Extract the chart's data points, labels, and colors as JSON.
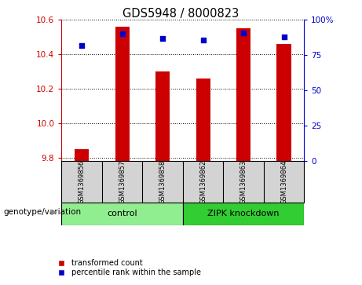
{
  "title": "GDS5948 / 8000823",
  "samples": [
    "GSM1369856",
    "GSM1369857",
    "GSM1369858",
    "GSM1369862",
    "GSM1369863",
    "GSM1369864"
  ],
  "transformed_count": [
    9.85,
    10.56,
    10.3,
    10.26,
    10.55,
    10.46
  ],
  "percentile_rank": [
    82,
    90,
    87,
    86,
    91,
    88
  ],
  "ylim_left": [
    9.78,
    10.6
  ],
  "ylim_right": [
    0,
    100
  ],
  "yticks_left": [
    9.8,
    10.0,
    10.2,
    10.4,
    10.6
  ],
  "yticks_right": [
    0,
    25,
    50,
    75,
    100
  ],
  "groups": [
    {
      "label": "control",
      "indices": [
        0,
        1,
        2
      ],
      "color": "#90ee90"
    },
    {
      "label": "ZIPK knockdown",
      "indices": [
        3,
        4,
        5
      ],
      "color": "#32cd32"
    }
  ],
  "bar_color": "#cc0000",
  "scatter_color": "#0000cc",
  "bar_bottom": 9.78,
  "bar_width": 0.35,
  "bg_color": "#d3d3d3",
  "plot_bg": "#ffffff",
  "label_color_left": "#cc0000",
  "label_color_right": "#0000cc",
  "legend_red_label": "transformed count",
  "legend_blue_label": "percentile rank within the sample",
  "genotype_label": "genotype/variation",
  "tick_label_size": 7.5,
  "title_fontsize": 10.5
}
